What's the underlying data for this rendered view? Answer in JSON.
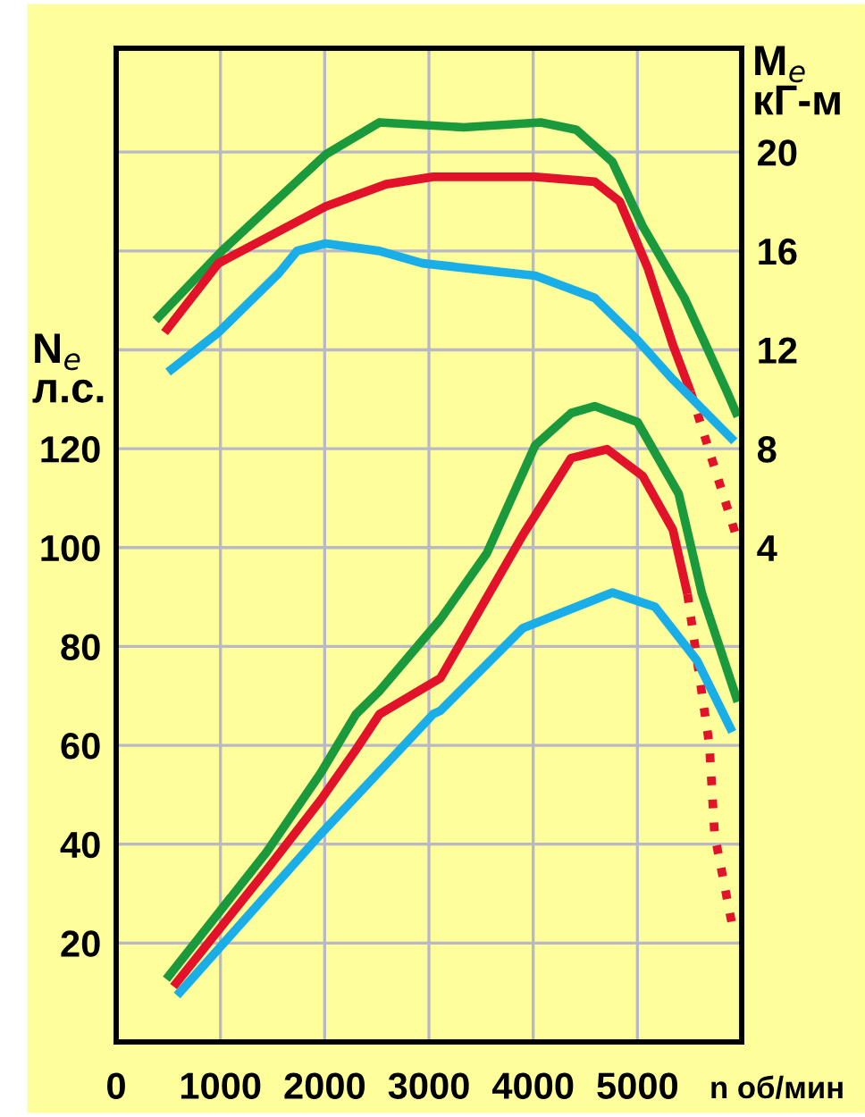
{
  "chart_data": {
    "type": "line",
    "xlabel": "n об/мин",
    "ylabel": "N$_{e}$\nл.с.",
    "y2label": "M$_{e}$\nкГ-м",
    "xlim": [
      0,
      6000
    ],
    "xticks": [
      0,
      1000,
      2000,
      3000,
      4000,
      5000
    ],
    "ylim": [
      0,
      201
    ],
    "yticks": [
      20,
      40,
      60,
      80,
      100,
      120,
      {
        "value": 140,
        "label": null
      },
      {
        "value": 160,
        "label": null
      },
      {
        "value": 180,
        "label": null
      }
    ],
    "y2lim": [
      -16,
      24.2
    ],
    "y2ticks": [
      4,
      8,
      12,
      16,
      20
    ],
    "grid": true,
    "legend": false,
    "marker": "none",
    "series": [
      {
        "color": "#1a9a3c",
        "axis": "y2",
        "line_style": "solid",
        "x": [
          378,
          1014,
          2010,
          2526,
          3333,
          4072,
          4416,
          4760,
          5050,
          5450,
          5860,
          5962
        ],
        "values": [
          13.2,
          16.0,
          19.9,
          21.2,
          21.0,
          21.2,
          20.9,
          19.6,
          17.0,
          14.1,
          10.3,
          9.3
        ]
      },
      {
        "color": "#e3122b",
        "axis": "y2",
        "line_style": "solid",
        "x": [
          464,
          980,
          2010,
          2590,
          3040,
          4020,
          4590,
          4830,
          5100,
          5340,
          5510
        ],
        "values": [
          12.7,
          15.5,
          17.8,
          18.7,
          19.0,
          19.0,
          18.8,
          18.0,
          15.3,
          12.2,
          10.3
        ]
      },
      {
        "color": "#e3122b",
        "axis": "y2",
        "line_style": "dotted",
        "x": [
          5510,
          5960
        ],
        "values": [
          10.3,
          4.3
        ]
      },
      {
        "color": "#1aaee8",
        "axis": "y2",
        "line_style": "solid",
        "x": [
          498,
          980,
          1560,
          1735,
          2010,
          2526,
          2938,
          4020,
          4590,
          5000,
          5340,
          5930
        ],
        "values": [
          11.1,
          12.7,
          15.1,
          16.0,
          16.3,
          16.0,
          15.5,
          15.0,
          14.1,
          12.4,
          10.8,
          8.3
        ]
      },
      {
        "color": "#1a9a3c",
        "axis": "y",
        "line_style": "solid",
        "x": [
          481,
          1443,
          1960,
          2300,
          2526,
          3110,
          3557,
          4020,
          4364,
          4590,
          5000,
          5395,
          5620,
          5962
        ],
        "values": [
          12.7,
          38.4,
          54.3,
          66.3,
          71.0,
          85.5,
          98.9,
          120.7,
          127.2,
          128.6,
          125.4,
          110.9,
          90.6,
          68.8
        ]
      },
      {
        "color": "#e3122b",
        "axis": "y",
        "line_style": "solid",
        "x": [
          550,
          1443,
          1960,
          2300,
          2526,
          3110,
          3900,
          4364,
          4708,
          5050,
          5340,
          5480
        ],
        "values": [
          11.2,
          34.8,
          48.9,
          59.1,
          66.3,
          73.6,
          102.5,
          118.1,
          119.9,
          114.5,
          103.6,
          90.6
        ]
      },
      {
        "color": "#e3122b",
        "axis": "y",
        "line_style": "dotted",
        "x": [
          5480,
          5690,
          5740,
          5910
        ],
        "values": [
          90.6,
          60.1,
          42.0,
          23.5
        ]
      },
      {
        "color": "#1aaee8",
        "axis": "y",
        "line_style": "solid",
        "x": [
          584,
          1960,
          3040,
          3110,
          3900,
          4760,
          5170,
          5570,
          5910
        ],
        "values": [
          9.4,
          42.0,
          66.3,
          67.0,
          83.7,
          90.9,
          88.0,
          77.2,
          62.7
        ]
      }
    ]
  }
}
